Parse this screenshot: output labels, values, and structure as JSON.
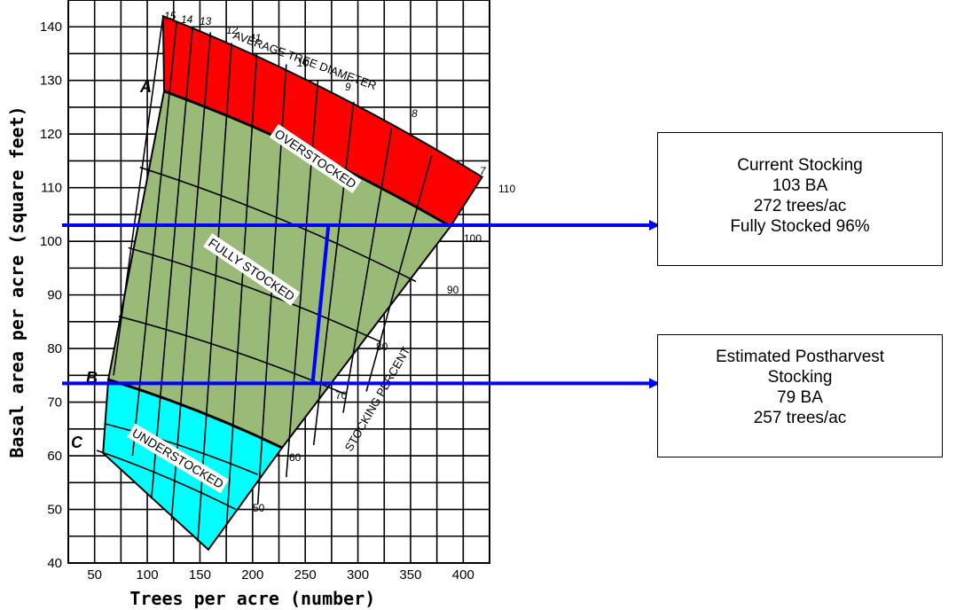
{
  "chart_data": {
    "type": "stocking-guide",
    "xlabel": "Trees per acre (number)",
    "ylabel": "Basal area per acre (square feet)",
    "x_ticks": [
      "50",
      "100",
      "150",
      "200",
      "250",
      "300",
      "350",
      "400"
    ],
    "y_ticks": [
      "40",
      "50",
      "60",
      "70",
      "80",
      "90",
      "100",
      "110",
      "120",
      "130",
      "140"
    ],
    "xlim": [
      25,
      425
    ],
    "ylim": [
      40,
      145
    ],
    "zones": [
      {
        "name": "OVERSTOCKED",
        "color": "#ff0000"
      },
      {
        "name": "FULLY STOCKED",
        "color": "#99bb77"
      },
      {
        "name": "UNDERSTOCKED",
        "color": "#00ffff"
      }
    ],
    "curve_letters": [
      "A",
      "B",
      "C"
    ],
    "diameter_title": "AVERAGE TREE DIAMETER",
    "diameter_labels": [
      "15",
      "14",
      "13",
      "12",
      "11",
      "10",
      "9",
      "8",
      "7"
    ],
    "stocking_title": "STOCKING PERCENT",
    "stocking_labels": [
      "110",
      "100",
      "90",
      "80",
      "70",
      "60",
      "50"
    ],
    "current": {
      "ba": 103,
      "tpa": 272
    },
    "postharvest": {
      "ba": 79,
      "tpa": 257,
      "marker_ba": 73.5
    },
    "arrow_color": "#0000ff"
  },
  "current_box": {
    "line1": "Current Stocking",
    "line2": "103 BA",
    "line3": "272 trees/ac",
    "line4": "Fully Stocked 96%"
  },
  "post_box": {
    "line1": "Estimated Postharvest",
    "line2": "Stocking",
    "line3": "79 BA",
    "line4": "257 trees/ac"
  }
}
